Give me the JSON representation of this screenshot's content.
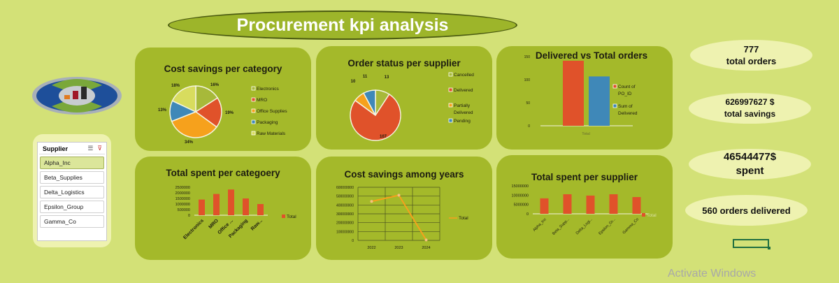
{
  "title": "Procurement kpi analysis",
  "slicer": {
    "header": "Supplier",
    "items": [
      "Alpha_Inc",
      "Beta_Supplies",
      "Delta_Logistics",
      "Epsilon_Group",
      "Gamma_Co"
    ],
    "selected": "Alpha_Inc"
  },
  "kpis": [
    {
      "value": "777",
      "label": "total orders"
    },
    {
      "value": "626997627 $",
      "label": "total savings"
    },
    {
      "value": "46544477$",
      "label": "spent"
    },
    {
      "value": "560 orders delivered",
      "label": ""
    }
  ],
  "watermark": "Activate Windows",
  "colors": {
    "red": "#e0522a",
    "orange": "#f6a11c",
    "blue": "#3f88b8",
    "olive": "#a7b93a",
    "pale": "#d8dc5e",
    "panel": "#a4b92a",
    "background": "#d3e177"
  },
  "chart_data": [
    {
      "id": "c1",
      "type": "pie",
      "title": "Cost savings per category",
      "categories": [
        "Electronics",
        "MRO",
        "Office Supplies",
        "Packaging",
        "Raw Materials"
      ],
      "values": [
        16,
        19,
        34,
        13,
        18
      ],
      "labels": [
        "16%",
        "19%",
        "34%",
        "13%",
        "18%"
      ]
    },
    {
      "id": "c2",
      "type": "pie",
      "title": "Order status per supplier",
      "categories": [
        "Cancelled",
        "Delivered",
        "Partially Delivered",
        "Pending"
      ],
      "values": [
        13,
        107,
        10,
        11
      ],
      "labels": [
        "13",
        "107",
        "10",
        "11"
      ]
    },
    {
      "id": "c3",
      "type": "bar",
      "title": "Delivered vs Total orders",
      "categories": [
        "Total"
      ],
      "series": [
        {
          "name": "Count of PO_ID",
          "values": [
            141
          ]
        },
        {
          "name": "Sum of Delivered",
          "values": [
            107
          ]
        }
      ],
      "ylim": [
        0,
        150
      ],
      "yticks": [
        "0",
        "50",
        "100",
        "150"
      ]
    },
    {
      "id": "c4",
      "type": "bar",
      "title": "Total spent per categoery",
      "categories": [
        "Electronics",
        "MRO",
        "Office ...",
        "Packaging",
        "Raw..."
      ],
      "values": [
        1400000,
        1900000,
        2300000,
        1500000,
        1000000
      ],
      "ylim": [
        0,
        2500000
      ],
      "yticks": [
        "0",
        "500000",
        "1000000",
        "1500000",
        "2000000",
        "2500000"
      ],
      "legend": "Total"
    },
    {
      "id": "c5",
      "type": "line",
      "title": "Cost savings among years",
      "categories": [
        "2022",
        "2023",
        "2024"
      ],
      "values": [
        440000000,
        510000000,
        5000000
      ],
      "ylim": [
        0,
        600000000
      ],
      "yticks": [
        "0",
        "100000000",
        "200000000",
        "300000000",
        "400000000",
        "500000000",
        "600000000"
      ],
      "legend": "Total",
      "grid": true
    },
    {
      "id": "c6",
      "type": "bar",
      "title": "Total spent per supplier",
      "categories": [
        "Alpha_Inc",
        "Beta_Supp...",
        "Delta_Logi...",
        "Epsilon_Gr...",
        "Gamma_Co"
      ],
      "values": [
        8300000,
        10500000,
        9800000,
        10500000,
        9000000
      ],
      "ylim": [
        0,
        15000000
      ],
      "yticks": [
        "0",
        "5000000",
        "10000000",
        "15000000"
      ],
      "legend": "Total"
    }
  ]
}
